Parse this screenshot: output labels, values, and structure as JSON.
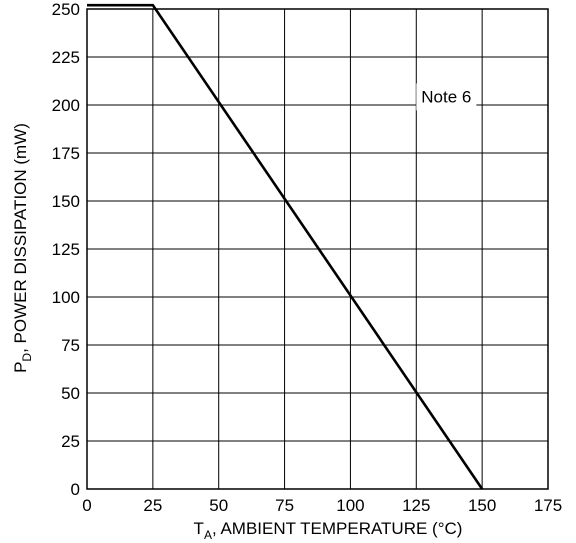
{
  "chart_data": {
    "type": "line",
    "xlabel_main": "T",
    "xlabel_sub": "A",
    "xlabel_rest": ", AMBIENT TEMPERATURE (°C)",
    "ylabel_main": "P",
    "ylabel_sub": "D",
    "ylabel_rest": ", POWER DISSIPATION (mW)",
    "xlim": [
      0,
      175
    ],
    "ylim": [
      0,
      250
    ],
    "x_ticks": [
      0,
      25,
      50,
      75,
      100,
      125,
      150,
      175
    ],
    "y_ticks": [
      0,
      25,
      50,
      75,
      100,
      125,
      150,
      175,
      200,
      225,
      250
    ],
    "grid": true,
    "series": [
      {
        "x": [
          0,
          25,
          150
        ],
        "y": [
          252,
          252,
          0
        ]
      }
    ],
    "annotation": {
      "text": "Note 6",
      "x": 125,
      "y": 205
    }
  }
}
